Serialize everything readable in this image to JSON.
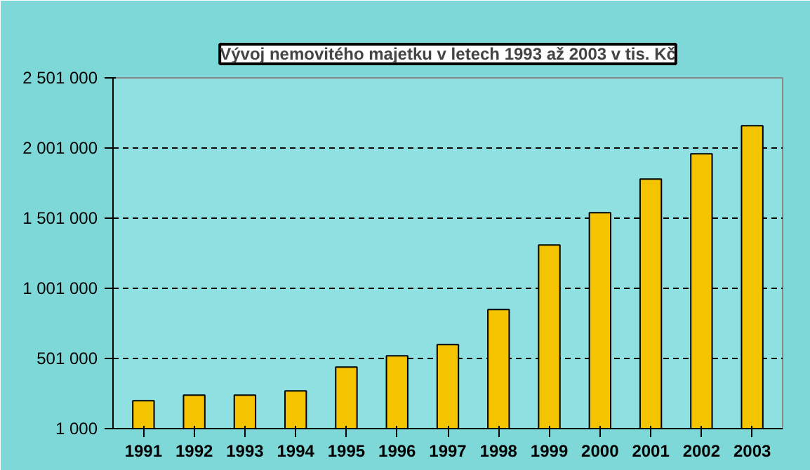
{
  "chart_data": {
    "type": "bar",
    "title": "Vývoj nemovitého majetku v letech 1993 až 2003 v tis. Kč",
    "categories": [
      "1991",
      "1992",
      "1993",
      "1994",
      "1995",
      "1996",
      "1997",
      "1998",
      "1999",
      "2000",
      "2001",
      "2002",
      "2003"
    ],
    "values": [
      200000,
      240000,
      240000,
      270000,
      440000,
      520000,
      600000,
      850000,
      1310000,
      1540000,
      1780000,
      1960000,
      2160000
    ],
    "color": "#f5c400",
    "ylim": [
      1000,
      2501000
    ],
    "yticks": [
      {
        "value": 1000,
        "label": "1 000"
      },
      {
        "value": 501000,
        "label": "501 000"
      },
      {
        "value": 1001000,
        "label": "1 001 000"
      },
      {
        "value": 1501000,
        "label": "1 501 000"
      },
      {
        "value": 2001000,
        "label": "2 001 000"
      },
      {
        "value": 2501000,
        "label": "2 501 000"
      }
    ],
    "grid": "y"
  }
}
